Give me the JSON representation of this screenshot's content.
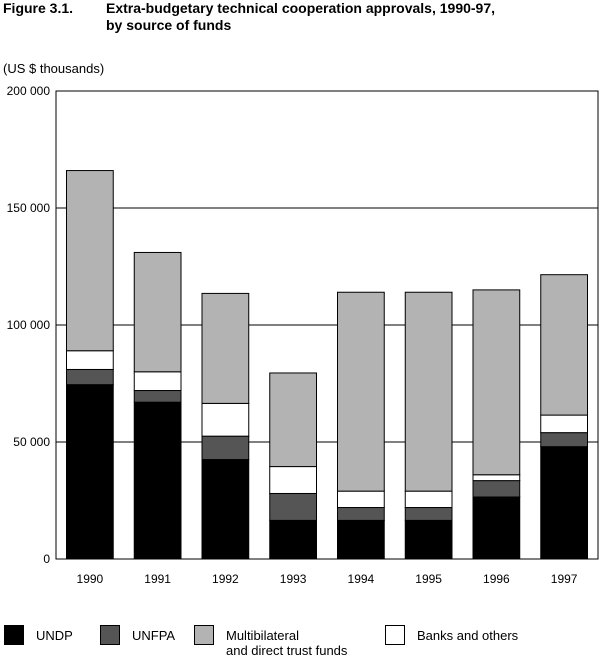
{
  "figure": {
    "number": "Figure 3.1.",
    "title_line1": "Extra-budgetary technical cooperation approvals, 1990-97,",
    "title_line2": "by source of funds",
    "unit": "(US $ thousands)"
  },
  "chart_data": {
    "type": "bar",
    "stacked": true,
    "categories": [
      "1990",
      "1991",
      "1992",
      "1993",
      "1994",
      "1995",
      "1996",
      "1997"
    ],
    "series": [
      {
        "name": "UNDP",
        "color": "#000000",
        "values": [
          74500,
          67000,
          42500,
          16500,
          16500,
          16500,
          26500,
          48000
        ]
      },
      {
        "name": "UNFPA",
        "color": "#555555",
        "values": [
          6500,
          5000,
          10000,
          11500,
          5500,
          5500,
          7000,
          6000
        ]
      },
      {
        "name": "Banks and others",
        "color": "#ffffff",
        "values": [
          8000,
          8000,
          14000,
          11500,
          7000,
          7000,
          2500,
          7500
        ]
      },
      {
        "name": "Multibilateral and direct trust funds",
        "color": "#b3b3b3",
        "values": [
          77000,
          51000,
          47000,
          40000,
          85000,
          85000,
          79000,
          60000
        ]
      }
    ],
    "yticks": [
      "0",
      "50 000",
      "100 000",
      "150 000",
      "200 000"
    ],
    "ylim": [
      0,
      200000
    ],
    "grid": true
  },
  "legend": [
    {
      "label_line1": "UNDP",
      "label_line2": "",
      "color": "#000000"
    },
    {
      "label_line1": "UNFPA",
      "label_line2": "",
      "color": "#555555"
    },
    {
      "label_line1": "Multibilateral",
      "label_line2": "and direct trust funds",
      "color": "#b3b3b3"
    },
    {
      "label_line1": "Banks and others",
      "label_line2": "",
      "color": "#ffffff"
    }
  ]
}
